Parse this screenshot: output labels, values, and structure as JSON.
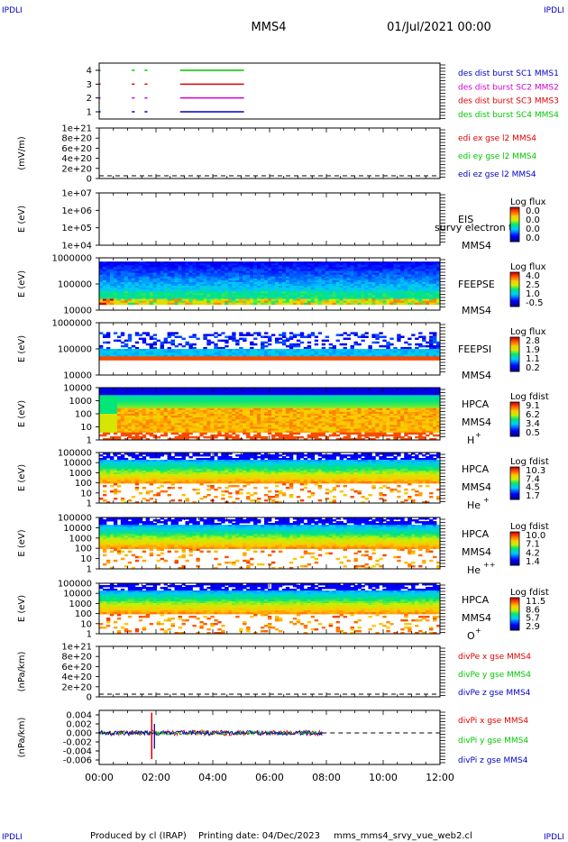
{
  "corner": {
    "tl": "IPDLI",
    "tr": "IPDLI",
    "bl": "IPDLI",
    "br": "IPDLI"
  },
  "header": {
    "title": "MMS4",
    "date": "01/Jul/2021 00:00"
  },
  "footer": {
    "produced": "Produced by cl (IRAP)",
    "printing": "Printing date: 04/Dec/2023",
    "file": "mms_mms4_srvy_vue_web2.cl"
  },
  "colors": {
    "red": "#e00000",
    "green": "#00c800",
    "blue": "#0000c8",
    "magenta": "#d000d0"
  },
  "chart_data": {
    "type": "stacked-timeseries",
    "xlim": [
      "00:00",
      "12:00"
    ],
    "xticks": [
      "00:00",
      "02:00",
      "04:00",
      "06:00",
      "08:00",
      "10:00",
      "12:00"
    ],
    "panels": [
      {
        "id": "burst",
        "type": "line",
        "yticks": [
          "1",
          "2",
          "3",
          "4"
        ],
        "labels": [
          {
            "text": "des dist burst SC1 MMS1",
            "color": "#0000c8"
          },
          {
            "text": "des dist burst SC2 MMS2",
            "color": "#d000d0"
          },
          {
            "text": "des dist burst SC3 MMS3",
            "color": "#e00000"
          },
          {
            "text": "des dist burst SC4 MMS4",
            "color": "#00c800"
          }
        ],
        "segments_hours": [
          [
            0.0,
            0.05
          ],
          [
            1.15,
            1.25
          ],
          [
            1.6,
            1.7
          ],
          [
            2.85,
            5.1
          ]
        ],
        "series": [
          {
            "level": 4,
            "color": "#00c800"
          },
          {
            "level": 3,
            "color": "#e00000"
          },
          {
            "level": 2,
            "color": "#d000d0"
          },
          {
            "level": 1,
            "color": "#0000c8"
          }
        ]
      },
      {
        "id": "edi",
        "type": "line",
        "ylabel": "(mV/m)",
        "yticks": [
          "0",
          "2e+20",
          "4e+20",
          "6e+20",
          "8e+20",
          "1e+21"
        ],
        "labels": [
          {
            "text": "edi ex gse l2 MMS4",
            "color": "#e00000"
          },
          {
            "text": "edi ey gse l2 MMS4",
            "color": "#00c800"
          },
          {
            "text": "edi ez gse l2 MMS4",
            "color": "#0000c8"
          }
        ]
      },
      {
        "id": "eis",
        "type": "heatmap",
        "ylabel": "E (eV)",
        "yticks": [
          "1e+04",
          "1e+05",
          "1e+06",
          "1e+07"
        ],
        "inst": [
          "EIS",
          "MMS4"
        ],
        "overlay": "survy electron to",
        "cbar": {
          "title": "Log flux",
          "ticks": [
            "0.0",
            "0.0",
            "0.0",
            "0.0"
          ]
        }
      },
      {
        "id": "feepse",
        "type": "heatmap",
        "ylabel": "E (eV)",
        "yticks": [
          "10000",
          "100000",
          "1000000"
        ],
        "inst": [
          "FEEPSE",
          "MMS4"
        ],
        "cbar": {
          "title": "Log flux",
          "ticks": [
            "4.0",
            "2.5",
            "1.0",
            "-0.5"
          ]
        }
      },
      {
        "id": "feepsi",
        "type": "heatmap",
        "ylabel": "E (eV)",
        "yticks": [
          "10000",
          "100000",
          "1000000"
        ],
        "inst": [
          "FEEPSI",
          "MMS4"
        ],
        "cbar": {
          "title": "Log flux",
          "ticks": [
            "2.8",
            "1.9",
            "1.1",
            "0.2"
          ]
        }
      },
      {
        "id": "hpca_h",
        "type": "heatmap",
        "ylabel": "E (eV)",
        "yticks": [
          "1",
          "10",
          "100",
          "1000",
          "10000"
        ],
        "inst": [
          "HPCA",
          "MMS4"
        ],
        "species": "H",
        "sup": "+",
        "cbar": {
          "title": "Log fdist",
          "ticks": [
            "9.1",
            "6.2",
            "3.4",
            "0.5"
          ]
        }
      },
      {
        "id": "hpca_he",
        "type": "heatmap",
        "ylabel": "E (eV)",
        "yticks": [
          "1",
          "10",
          "100",
          "1000",
          "10000",
          "100000"
        ],
        "inst": [
          "HPCA",
          "MMS4"
        ],
        "species": "He",
        "sup": "+",
        "cbar": {
          "title": "Log fdist",
          "ticks": [
            "10.3",
            "7.4",
            "4.5",
            "1.7"
          ]
        }
      },
      {
        "id": "hpca_hepp",
        "type": "heatmap",
        "ylabel": "E (eV)",
        "yticks": [
          "1",
          "10",
          "100",
          "1000",
          "10000",
          "100000"
        ],
        "inst": [
          "HPCA",
          "MMS4"
        ],
        "species": "He",
        "sup": "++",
        "cbar": {
          "title": "Log fdist",
          "ticks": [
            "10.0",
            "7.1",
            "4.2",
            "1.4"
          ]
        }
      },
      {
        "id": "hpca_o",
        "type": "heatmap",
        "ylabel": "E (eV)",
        "yticks": [
          "1",
          "10",
          "100",
          "1000",
          "10000",
          "100000"
        ],
        "inst": [
          "HPCA",
          "MMS4"
        ],
        "species": "O",
        "sup": "+",
        "cbar": {
          "title": "Log fdist",
          "ticks": [
            "11.5",
            "8.6",
            "5.7",
            "2.9"
          ]
        }
      },
      {
        "id": "divpe",
        "type": "line",
        "ylabel": "(nPa/km)",
        "yticks": [
          "0",
          "2e+20",
          "4e+20",
          "6e+20",
          "8e+20",
          "1e+21"
        ],
        "labels": [
          {
            "text": "divPe x gse MMS4",
            "color": "#e00000"
          },
          {
            "text": "divPe y gse MMS4",
            "color": "#00c800"
          },
          {
            "text": "divPe z gse MMS4",
            "color": "#0000c8"
          }
        ]
      },
      {
        "id": "divpi",
        "type": "line",
        "ylabel": "(nPa/km)",
        "yticks": [
          "-0.006",
          "-0.004",
          "-0.002",
          "0.000",
          "0.002",
          "0.004"
        ],
        "ylim": [
          -0.007,
          0.005
        ],
        "data_end_hour": 7.85,
        "spike": {
          "hour": 1.85,
          "red": [
            0.0045,
            -0.0058
          ],
          "blue": [
            0.002,
            -0.0035
          ]
        },
        "labels": [
          {
            "text": "divPi x gse MMS4",
            "color": "#e00000"
          },
          {
            "text": "divPi y gse MMS4",
            "color": "#00c800"
          },
          {
            "text": "divPi z gse MMS4",
            "color": "#0000c8"
          }
        ]
      }
    ]
  }
}
